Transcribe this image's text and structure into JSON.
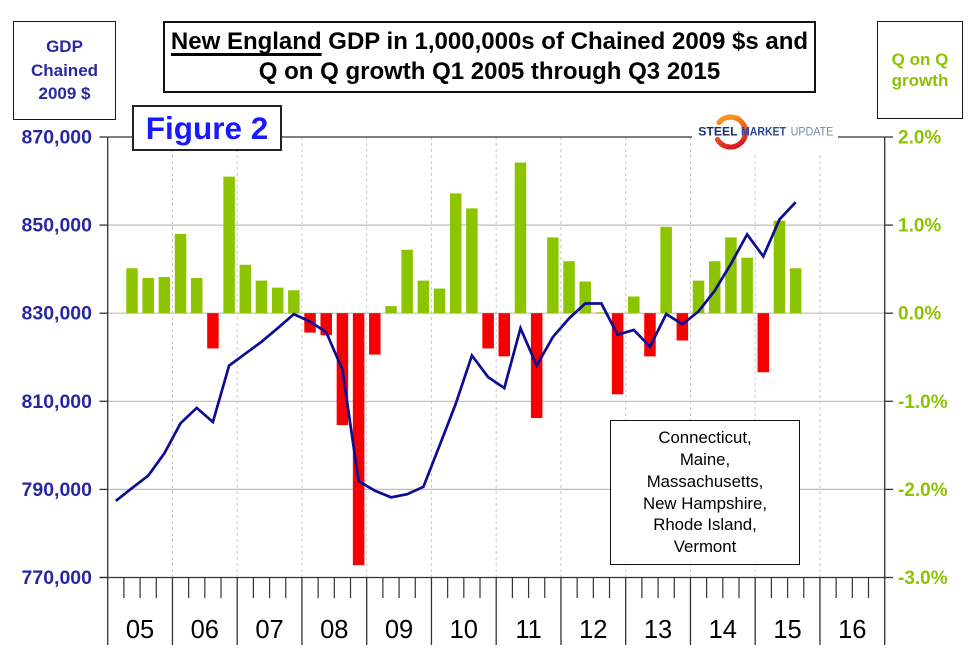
{
  "header": {
    "gdp_axis_box": {
      "line1": "GDP",
      "line2": "Chained",
      "line3": "2009 $"
    },
    "title_box": {
      "line1_underlined": "New England",
      "line1_rest": " GDP in 1,000,000s of Chained 2009 $s and",
      "line2": "Q on Q growth Q1 2005 through Q3 2015"
    },
    "growth_axis_box": {
      "line1": "Q on Q",
      "line2": "growth"
    },
    "figure_label": "Figure 2",
    "logo": {
      "word1": "STEEL",
      "word2": "MARKET",
      "word3": "UPDATE"
    }
  },
  "legend_box": {
    "lines": [
      "Connecticut,",
      "Maine,",
      "Massachusetts,",
      "New Hampshire,",
      "Rhode Island,",
      "Vermont"
    ]
  },
  "chart_data": {
    "type": "combo-bar-line",
    "title": "New England GDP in 1,000,000s of Chained 2009 $s and Q on Q growth Q1 2005 through Q3 2015",
    "figure": "Figure 2",
    "region_states": "Connecticut, Maine, Massachusetts, New Hampshire, Rhode Island, Vermont",
    "x_axis": {
      "year_labels": [
        "05",
        "06",
        "07",
        "08",
        "09",
        "10",
        "11",
        "12",
        "13",
        "14",
        "15",
        "16"
      ],
      "quarters_per_year": 4
    },
    "left_axis": {
      "label": "GDP Chained 2009 $",
      "tick_labels": [
        "870,000",
        "850,000",
        "830,000",
        "810,000",
        "790,000",
        "770,000"
      ],
      "max": 870000,
      "min": 770000,
      "units": "chained 2009 $ millions"
    },
    "right_axis": {
      "label": "Q on Q growth",
      "tick_labels": [
        "2.0%",
        "1.0%",
        "0.0%",
        "-1.0%",
        "-2.0%",
        "-3.0%"
      ],
      "max": 2.0,
      "min": -3.0,
      "units": "percent"
    },
    "grid": {
      "horizontal": "solid",
      "vertical": "dashed-yearly"
    },
    "quarter_labels": [
      "Q1 2005",
      "Q2 2005",
      "Q3 2005",
      "Q4 2005",
      "Q1 2006",
      "Q2 2006",
      "Q3 2006",
      "Q4 2006",
      "Q1 2007",
      "Q2 2007",
      "Q3 2007",
      "Q4 2007",
      "Q1 2008",
      "Q2 2008",
      "Q3 2008",
      "Q4 2008",
      "Q1 2009",
      "Q2 2009",
      "Q3 2009",
      "Q4 2009",
      "Q1 2010",
      "Q2 2010",
      "Q3 2010",
      "Q4 2010",
      "Q1 2011",
      "Q2 2011",
      "Q3 2011",
      "Q4 2011",
      "Q1 2012",
      "Q2 2012",
      "Q3 2012",
      "Q4 2012",
      "Q1 2013",
      "Q2 2013",
      "Q3 2013",
      "Q4 2013",
      "Q1 2014",
      "Q2 2014",
      "Q3 2014",
      "Q4 2014",
      "Q1 2015",
      "Q2 2015",
      "Q3 2015"
    ],
    "series": [
      {
        "name": "GDP level (line)",
        "type": "line",
        "start_quarter": "Q1 2005",
        "values": [
          787400,
          790300,
          793100,
          798200,
          805000,
          808500,
          805300,
          818100,
          820800,
          823500,
          826600,
          829800,
          828100,
          825700,
          817200,
          791900,
          789700,
          788200,
          788900,
          790600,
          799900,
          809400,
          820400,
          815500,
          813000,
          826600,
          818100,
          824600,
          828800,
          832200,
          832200,
          825100,
          826200,
          822400,
          829800,
          827500,
          830400,
          835100,
          841200,
          847900,
          842900,
          851300,
          855200
        ]
      },
      {
        "name": "Q on Q growth % (bars)",
        "type": "bar",
        "start_quarter": "Q2 2005",
        "values": [
          0.51,
          0.4,
          0.41,
          0.9,
          0.4,
          -0.4,
          1.55,
          0.55,
          0.37,
          0.29,
          0.26,
          -0.22,
          -0.25,
          -1.27,
          -2.86,
          -0.47,
          0.08,
          0.72,
          0.37,
          0.28,
          1.36,
          1.19,
          -0.4,
          -0.49,
          1.71,
          -1.19,
          0.86,
          0.59,
          0.36,
          0.01,
          -0.92,
          0.19,
          -0.49,
          0.98,
          -0.31,
          0.37,
          0.59,
          0.86,
          0.63,
          -0.67,
          1.05,
          0.51
        ]
      }
    ],
    "colors": {
      "bar_positive": "#8cc400",
      "bar_negative": "#f70000",
      "line": "#0c0c96",
      "left_axis_text": "#2828a0",
      "right_axis_text": "#8cc400",
      "figure_text": "#1919ff",
      "gridline": "#c9c9c9",
      "axis_frame": "#333333",
      "year_text": "#000000"
    }
  }
}
